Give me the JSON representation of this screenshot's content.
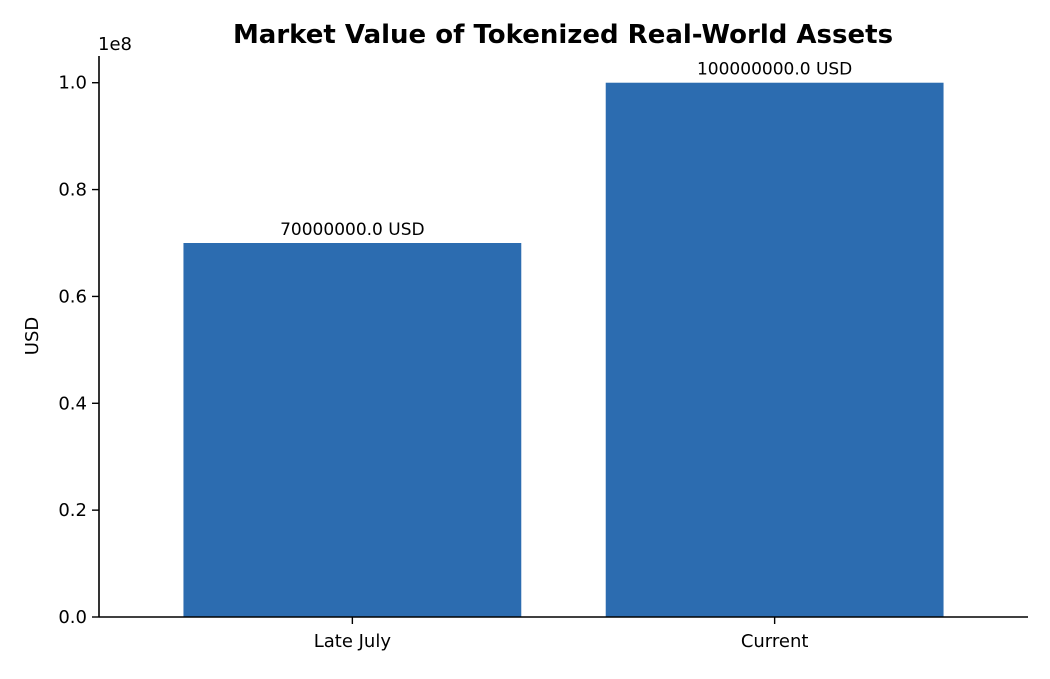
{
  "chart_data": {
    "type": "bar",
    "title": "Market Value of Tokenized Real-World Assets",
    "xlabel": "",
    "ylabel": "USD",
    "categories": [
      "Late July",
      "Current"
    ],
    "values": [
      70000000.0,
      100000000.0
    ],
    "value_labels": [
      "70000000.0 USD",
      "100000000.0 USD"
    ],
    "ylim": [
      0,
      105000000
    ],
    "yticks": [
      0,
      20000000,
      40000000,
      60000000,
      80000000,
      100000000
    ],
    "ytick_labels": [
      "0.0",
      "0.2",
      "0.4",
      "0.6",
      "0.8",
      "1.0"
    ],
    "y_offset_label": "1e8",
    "grid": false,
    "legend": "none",
    "colors": {
      "bar": "#2c6cb0",
      "axis": "#000000",
      "text": "#000000"
    }
  }
}
